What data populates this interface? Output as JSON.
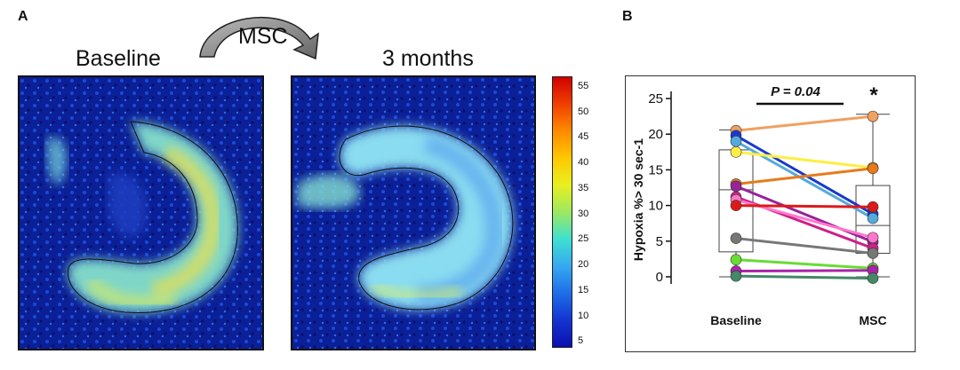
{
  "panel_a": {
    "letter": "A",
    "arrow_label": "MSC",
    "left_title": "Baseline",
    "right_title": "3 months",
    "colorbar": {
      "ticks": [
        "55",
        "50",
        "45",
        "40",
        "35",
        "30",
        "25",
        "20",
        "15",
        "10",
        "5"
      ],
      "colors": [
        "#d10000",
        "#f04000",
        "#ff8a00",
        "#ffc800",
        "#e8f020",
        "#9ce860",
        "#40e0d0",
        "#36a9f0",
        "#1e6ee8",
        "#1434d0",
        "#0a10b0"
      ]
    }
  },
  "panel_b": {
    "letter": "B",
    "p_value": "P = 0.04",
    "star": "*",
    "chart_data": {
      "type": "scatter",
      "xlabel": "",
      "ylabel": "Hypoxia %> 30 sec-1",
      "categories": [
        "Baseline",
        "MSC"
      ],
      "ylim": [
        -1,
        26
      ],
      "yticks": [
        0,
        5,
        10,
        15,
        20,
        25
      ],
      "boxes": [
        {
          "category": "Baseline",
          "min": 0,
          "q1": 3.5,
          "median": 12.2,
          "q3": 17.8,
          "max": 20.6
        },
        {
          "category": "MSC",
          "min": 0,
          "q1": 3.3,
          "median": 7.2,
          "q3": 12.8,
          "max": 22.8
        }
      ],
      "paired_series": [
        {
          "color": "#f0a060",
          "values": [
            20.5,
            22.5
          ]
        },
        {
          "color": "#1a3acc",
          "values": [
            19.8,
            8.8
          ]
        },
        {
          "color": "#55aadd",
          "values": [
            19.0,
            8.2
          ]
        },
        {
          "color": "#ffee44",
          "values": [
            17.5,
            15.3
          ]
        },
        {
          "color": "#e87a1a",
          "values": [
            13.0,
            15.2
          ]
        },
        {
          "color": "#992299",
          "values": [
            12.7,
            4.9
          ]
        },
        {
          "color": "#cc2288",
          "values": [
            11.2,
            4.0
          ]
        },
        {
          "color": "#ff77cc",
          "values": [
            10.8,
            5.5
          ]
        },
        {
          "color": "#dd1a1a",
          "values": [
            10.0,
            9.8
          ]
        },
        {
          "color": "#777777",
          "values": [
            5.4,
            3.3
          ]
        },
        {
          "color": "#66dd33",
          "values": [
            2.4,
            1.2
          ]
        },
        {
          "color": "#aa22aa",
          "values": [
            0.8,
            0.9
          ]
        },
        {
          "color": "#448866",
          "values": [
            0.1,
            -0.2
          ]
        }
      ]
    }
  }
}
